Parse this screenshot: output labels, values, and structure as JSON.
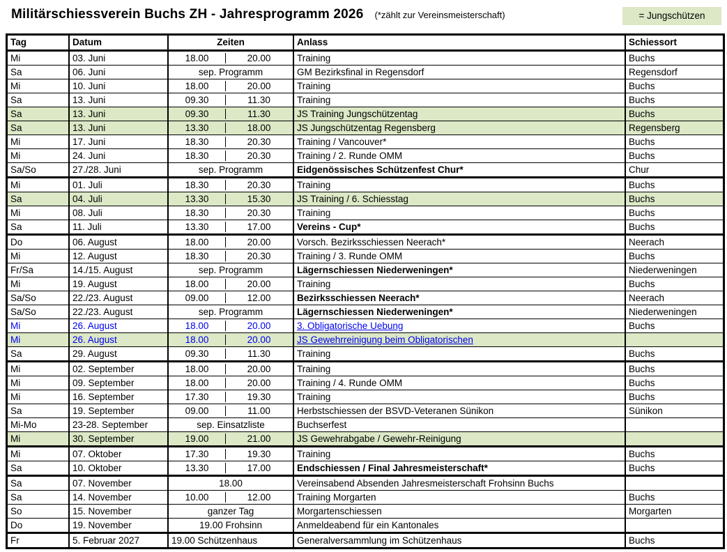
{
  "title": "Militärschiessverein Buchs ZH - Jahresprogramm 2026",
  "subtitle": "(*zählt zur Vereinsmeisterschaft)",
  "legend": "= Jungschützen",
  "colors": {
    "js_green": "#dce8c6",
    "link_blue": "#0000ee"
  },
  "columns": {
    "tag": "Tag",
    "datum": "Datum",
    "zeiten": "Zeiten",
    "anlass": "Anlass",
    "schiessort": "Schiessort"
  },
  "sections": [
    {
      "rows": [
        {
          "tag": "Mi",
          "datum": "03. Juni",
          "zeit": {
            "start": "18.00",
            "end": "20.00"
          },
          "anlass": "Training",
          "ort": "Buchs"
        },
        {
          "tag": "Sa",
          "datum": "06. Juni",
          "zeit": {
            "merged": "sep. Programm"
          },
          "anlass": "GM Bezirksfinal in Regensdorf",
          "ort": "Regensdorf"
        },
        {
          "tag": "Mi",
          "datum": "10. Juni",
          "zeit": {
            "start": "18.00",
            "end": "20.00"
          },
          "anlass": "Training",
          "ort": "Buchs"
        },
        {
          "tag": "Sa",
          "datum": "13. Juni",
          "zeit": {
            "start": "09.30",
            "end": "11.30"
          },
          "anlass": "Training",
          "ort": "Buchs"
        },
        {
          "tag": "Sa",
          "datum": "13. Juni",
          "zeit": {
            "start": "09.30",
            "end": "11.30"
          },
          "anlass": "JS Training Jungschützentag",
          "ort": "Buchs",
          "js": true
        },
        {
          "tag": "Sa",
          "datum": "13. Juni",
          "zeit": {
            "start": "13.30",
            "end": "18.00"
          },
          "anlass": "JS Jungschützentag Regensberg",
          "ort": "Regensberg",
          "js": true
        },
        {
          "tag": "Mi",
          "datum": "17. Juni",
          "zeit": {
            "start": "18.30",
            "end": "20.30"
          },
          "anlass": "Training / Vancouver*",
          "ort": "Buchs"
        },
        {
          "tag": "Mi",
          "datum": "24. Juni",
          "zeit": {
            "start": "18.30",
            "end": "20.30"
          },
          "anlass": "Training / 2. Runde OMM",
          "ort": "Buchs"
        },
        {
          "tag": "Sa/So",
          "datum": "27./28. Juni",
          "zeit": {
            "merged": "sep. Programm"
          },
          "anlass": "Eidgenössisches Schützenfest Chur*",
          "ort": "Chur",
          "bold": true
        }
      ]
    },
    {
      "rows": [
        {
          "tag": "Mi",
          "datum": "01. Juli",
          "zeit": {
            "start": "18.30",
            "end": "20.30"
          },
          "anlass": "Training",
          "ort": "Buchs"
        },
        {
          "tag": "Sa",
          "datum": "04. Juli",
          "zeit": {
            "start": "13.30",
            "end": "15.30"
          },
          "anlass": "JS Training / 6. Schiesstag",
          "ort": "Buchs",
          "js": true
        },
        {
          "tag": "Mi",
          "datum": "08. Juli",
          "zeit": {
            "start": "18.30",
            "end": "20.30"
          },
          "anlass": "Training",
          "ort": "Buchs"
        },
        {
          "tag": "Sa",
          "datum": "11. Juli",
          "zeit": {
            "start": "13.30",
            "end": "17.00"
          },
          "anlass": "Vereins - Cup*",
          "ort": "Buchs",
          "bold": true
        }
      ]
    },
    {
      "rows": [
        {
          "tag": "Do",
          "datum": "06. August",
          "zeit": {
            "start": "18.00",
            "end": "20.00"
          },
          "anlass": "Vorsch. Bezirksschiessen Neerach*",
          "ort": "Neerach"
        },
        {
          "tag": "Mi",
          "datum": "12. August",
          "zeit": {
            "start": "18.30",
            "end": "20.30"
          },
          "anlass": "Training / 3. Runde OMM",
          "ort": "Buchs"
        },
        {
          "tag": "Fr/Sa",
          "datum": "14./15. August",
          "zeit": {
            "merged": "sep. Programm"
          },
          "anlass": "Lägernschiessen Niederweningen*",
          "ort": "Niederweningen",
          "bold": true
        },
        {
          "tag": "Mi",
          "datum": "19. August",
          "zeit": {
            "start": "18.00",
            "end": "20.00"
          },
          "anlass": "Training",
          "ort": "Buchs"
        },
        {
          "tag": "Sa/So",
          "datum": "22./23. August",
          "zeit": {
            "start": "09.00",
            "end": "12.00"
          },
          "anlass": "Bezirksschiessen Neerach*",
          "ort": "Neerach",
          "bold": true
        },
        {
          "tag": "Sa/So",
          "datum": "22./23. August",
          "zeit": {
            "merged": "sep. Programm"
          },
          "anlass": "Lägernschiessen Niederweningen*",
          "ort": "Niederweningen",
          "bold": true
        },
        {
          "tag": "Mi",
          "datum": "26. August",
          "zeit": {
            "start": "18.00",
            "end": "20.00"
          },
          "anlass": "3. Obligatorische Uebung",
          "ort": "Buchs",
          "blue": true,
          "link": true
        },
        {
          "tag": "Mi",
          "datum": "26. August",
          "zeit": {
            "start": "18.00",
            "end": "20.00"
          },
          "anlass": "JS Gewehrreinigung beim Obligatorischen",
          "ort": "",
          "js": true,
          "blue": true,
          "link": true
        },
        {
          "tag": "Sa",
          "datum": "29. August",
          "zeit": {
            "start": "09.30",
            "end": "11.30"
          },
          "anlass": "Training",
          "ort": "Buchs"
        }
      ]
    },
    {
      "rows": [
        {
          "tag": "Mi",
          "datum": "02. September",
          "zeit": {
            "start": "18.00",
            "end": "20.00"
          },
          "anlass": "Training",
          "ort": "Buchs"
        },
        {
          "tag": "Mi",
          "datum": "09. September",
          "zeit": {
            "start": "18.00",
            "end": "20.00"
          },
          "anlass": "Training / 4. Runde OMM",
          "ort": "Buchs"
        },
        {
          "tag": "Mi",
          "datum": "16. September",
          "zeit": {
            "start": "17.30",
            "end": "19.30"
          },
          "anlass": "Training",
          "ort": "Buchs"
        },
        {
          "tag": "Sa",
          "datum": "19. September",
          "zeit": {
            "start": "09.00",
            "end": "11.00"
          },
          "anlass": "Herbstschiessen der BSVD-Veteranen Sünikon",
          "ort": "Sünikon"
        },
        {
          "tag": "Mi-Mo",
          "datum": "23-28. September",
          "zeit": {
            "merged": "sep. Einsatzliste"
          },
          "anlass": "Buchserfest",
          "ort": ""
        },
        {
          "tag": "Mi",
          "datum": "30. September",
          "zeit": {
            "start": "19.00",
            "end": "21.00"
          },
          "anlass": "JS Gewehrabgabe / Gewehr-Reinigung",
          "ort": "",
          "js": true
        }
      ]
    },
    {
      "rows": [
        {
          "tag": "Mi",
          "datum": "07. Oktober",
          "zeit": {
            "start": "17.30",
            "end": "19.30"
          },
          "anlass": "Training",
          "ort": "Buchs"
        },
        {
          "tag": "Sa",
          "datum": "10. Oktober",
          "zeit": {
            "start": "13.30",
            "end": "17.00"
          },
          "anlass": "Endschiessen / Final Jahresmeisterschaft*",
          "ort": "Buchs",
          "bold": true
        }
      ]
    },
    {
      "rows": [
        {
          "tag": "Sa",
          "datum": "07. November",
          "zeit": {
            "merged": "18.00"
          },
          "anlass": "Vereinsabend Absenden Jahresmeisterschaft Frohsinn Buchs",
          "ort": ""
        },
        {
          "tag": "Sa",
          "datum": "14. November",
          "zeit": {
            "start": "10.00",
            "end": "12.00"
          },
          "anlass": "Training Morgarten",
          "ort": "Buchs"
        },
        {
          "tag": "So",
          "datum": "15. November",
          "zeit": {
            "merged": "ganzer Tag"
          },
          "anlass": "Morgartenschiessen",
          "ort": "Morgarten"
        },
        {
          "tag": "Do",
          "datum": "19. November",
          "zeit": {
            "merged": "19.00 Frohsinn"
          },
          "anlass": "Anmeldeabend für ein Kantonales",
          "ort": ""
        }
      ]
    },
    {
      "rows": [
        {
          "tag": "Fr",
          "datum": "5. Februar 2027",
          "zeit": {
            "merged": "19.00 Schützenhaus",
            "align": "left"
          },
          "anlass": "Generalversammlung im Schützenhaus",
          "ort": "Buchs"
        }
      ]
    }
  ]
}
